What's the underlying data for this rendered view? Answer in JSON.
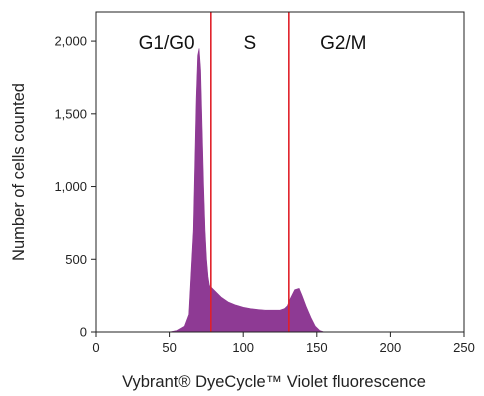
{
  "chart_data": {
    "type": "area",
    "xlabel": "Vybrant® DyeCycle™ Violet fluorescence",
    "ylabel": "Number of cells counted",
    "xlim": [
      0,
      250
    ],
    "ylim": [
      0,
      2200
    ],
    "x_ticks": [
      "0",
      "50",
      "100",
      "150",
      "200",
      "250"
    ],
    "y_ticks": [
      "0",
      "500",
      "1,000",
      "1,500",
      "2,000"
    ],
    "x_tick_values": [
      0,
      50,
      100,
      150,
      200,
      250
    ],
    "y_tick_values": [
      0,
      500,
      1000,
      1500,
      2000
    ],
    "grid": false,
    "fill_color": "#8e3a94",
    "gate_color": "#e0202a",
    "gates": [
      78,
      131
    ],
    "regions": [
      "G1/G0",
      "S",
      "G2/M"
    ],
    "x": [
      50,
      55,
      60,
      63,
      66,
      68,
      69,
      70,
      71,
      72,
      73,
      74,
      75,
      76,
      77,
      78,
      80,
      85,
      90,
      95,
      100,
      105,
      110,
      115,
      120,
      125,
      128,
      130,
      132,
      135,
      138,
      140,
      143,
      146,
      149,
      152,
      155
    ],
    "values": [
      0,
      10,
      40,
      120,
      700,
      1600,
      1900,
      1950,
      1800,
      1400,
      1000,
      700,
      500,
      380,
      320,
      310,
      290,
      240,
      205,
      185,
      170,
      160,
      155,
      150,
      150,
      150,
      160,
      180,
      230,
      290,
      300,
      250,
      170,
      100,
      40,
      10,
      0
    ]
  }
}
